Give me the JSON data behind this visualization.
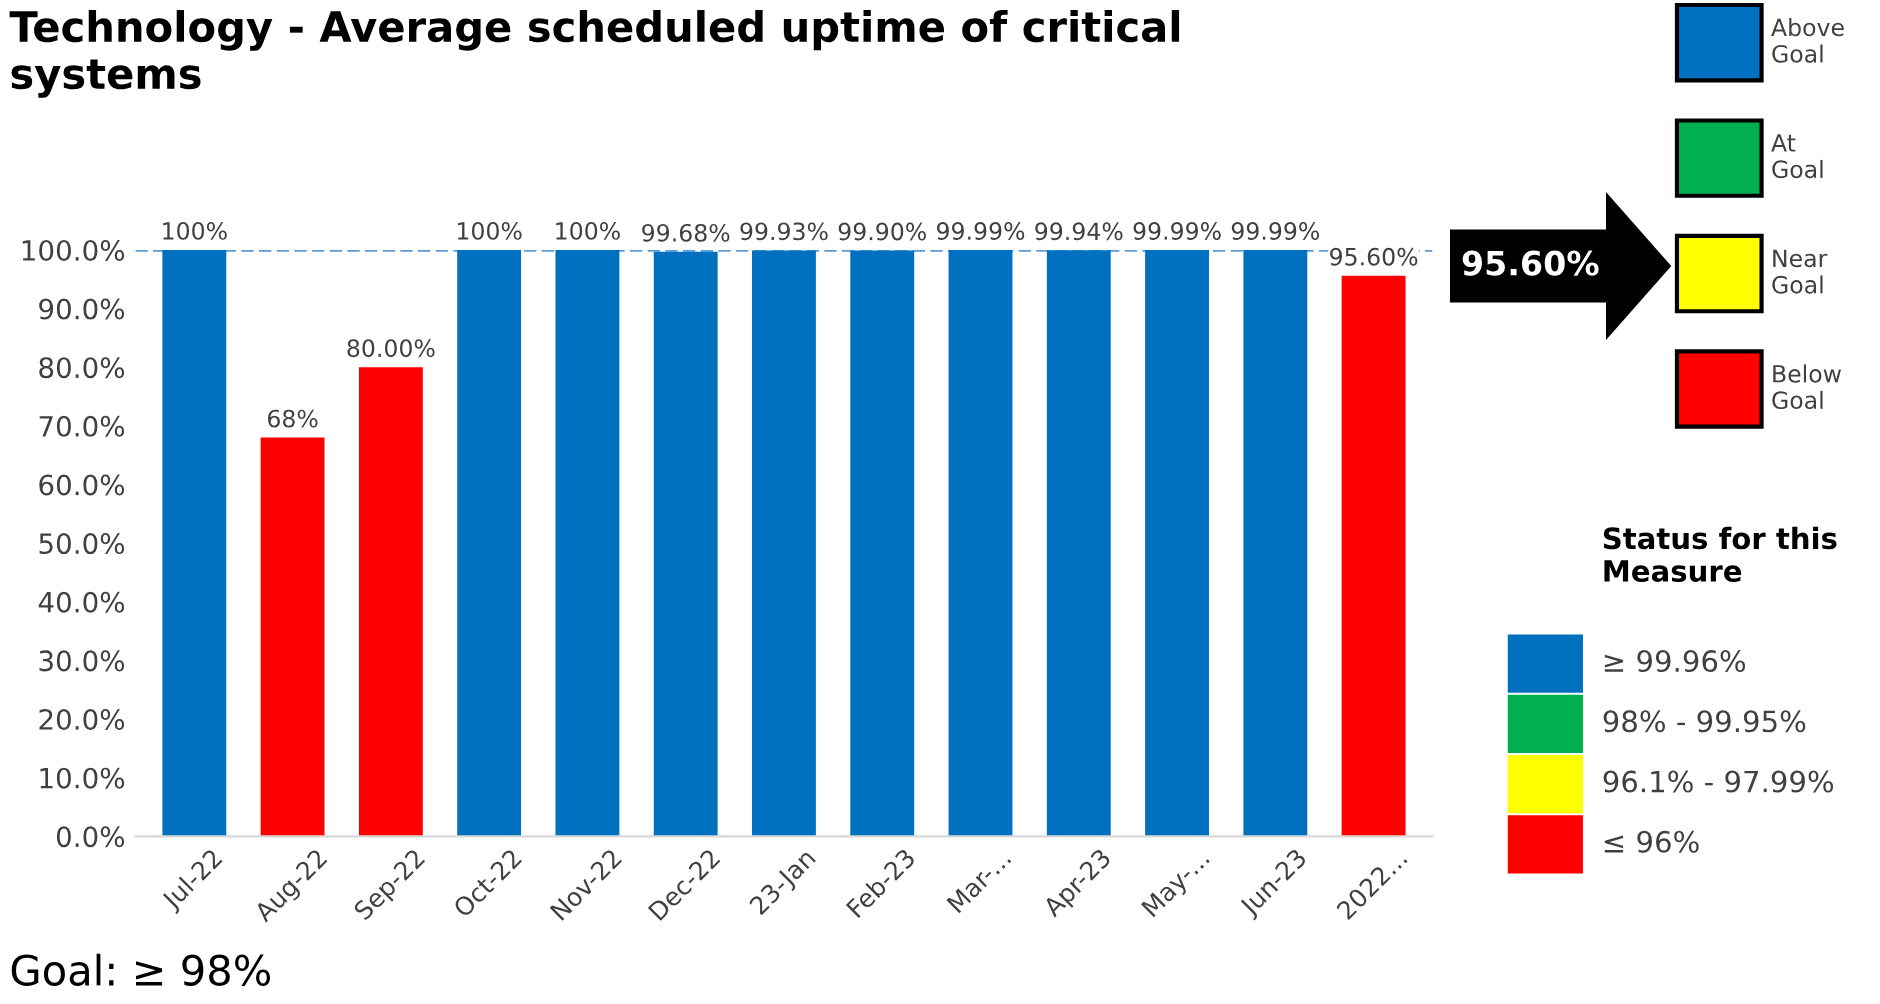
{
  "chart_data": {
    "type": "bar",
    "title": "Technology - Average scheduled uptime of critical\nsystems",
    "categories": [
      "Jul-22",
      "Aug-22",
      "Sep-22",
      "Oct-22",
      "Nov-22",
      "Dec-22",
      "23-Jan",
      "Feb-23",
      "Mar-...",
      "Apr-23",
      "May-...",
      "Jun-23",
      "2022..."
    ],
    "values": [
      100,
      68,
      80,
      100,
      100,
      99.68,
      99.93,
      99.9,
      99.99,
      99.94,
      99.99,
      99.99,
      95.6
    ],
    "colors": [
      "#0070c0",
      "#ff0000",
      "#ff0000",
      "#0070c0",
      "#0070c0",
      "#0070c0",
      "#0070c0",
      "#0070c0",
      "#0070c0",
      "#0070c0",
      "#0070c0",
      "#0070c0",
      "#ff0000"
    ],
    "value_labels": [
      "100%",
      "68%",
      "80.00%",
      "100%",
      "100%",
      "99.68%",
      "99.93%",
      "99.90%",
      "99.99%",
      "99.94%",
      "99.99%",
      "99.99%",
      "95.60%"
    ],
    "ylim": [
      0,
      100
    ],
    "yticks": [
      {
        "value": 0,
        "label": "0.0%"
      },
      {
        "value": 10,
        "label": "10.0%"
      },
      {
        "value": 20,
        "label": "20.0%"
      },
      {
        "value": 30,
        "label": "30.0%"
      },
      {
        "value": 40,
        "label": "40.0%"
      },
      {
        "value": 50,
        "label": "50.0%"
      },
      {
        "value": 60,
        "label": "60.0%"
      },
      {
        "value": 70,
        "label": "70.0%"
      },
      {
        "value": 80,
        "label": "80.0%"
      },
      {
        "value": 90,
        "label": "90.0%"
      },
      {
        "value": 100,
        "label": "100.0%"
      }
    ],
    "ref_lines": [
      {
        "axis": "y",
        "value": 100,
        "color": "#5b9bd5",
        "line_style": "dashed"
      }
    ],
    "annotations": [
      "95.60%",
      "Above\nGoal",
      "At\nGoal",
      "Near\nGoal",
      "Below\nGoal",
      "Status for this\nMeasure",
      "≥ 99.96%",
      "98% - 99.95%",
      "96.1% - 97.99%",
      "≤ 96%",
      "Goal: ≥ 98%"
    ]
  }
}
